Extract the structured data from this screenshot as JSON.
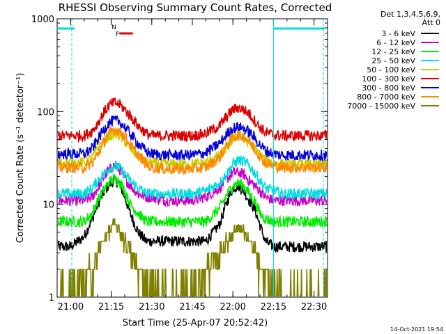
{
  "chart_data": {
    "type": "line",
    "title": "RHESSI Observing Summary Count Rates, Corrected",
    "xlabel": "Start Time (25-Apr-07 20:52:42)",
    "ylabel": "Corrected Count Rate (s⁻¹ detector⁻¹)",
    "yscale": "log",
    "ylim": [
      1,
      1000
    ],
    "xlim_minutes": [
      -5,
      95
    ],
    "x_ticks": [
      {
        "min": 0,
        "label": "21:00"
      },
      {
        "min": 15,
        "label": "21:15"
      },
      {
        "min": 30,
        "label": "21:30"
      },
      {
        "min": 45,
        "label": "21:45"
      },
      {
        "min": 60,
        "label": "22:00"
      },
      {
        "min": 75,
        "label": "22:15"
      },
      {
        "min": 90,
        "label": "22:30"
      }
    ],
    "y_ticks": [
      {
        "value": 1,
        "label": "1"
      },
      {
        "value": 10,
        "label": "10"
      },
      {
        "value": 100,
        "label": "100"
      },
      {
        "value": 1000,
        "label": "1000"
      }
    ],
    "x_minutes": [
      -5,
      0,
      5,
      8,
      10,
      12,
      14,
      16,
      18,
      20,
      22,
      25,
      28,
      30,
      35,
      40,
      45,
      50,
      55,
      58,
      60,
      62,
      64,
      66,
      68,
      70,
      72,
      75,
      78,
      80,
      85,
      90,
      95
    ],
    "series": [
      {
        "name": "3 - 6 keV",
        "color": "#000000",
        "values": [
          3.5,
          3.5,
          4.5,
          7,
          10,
          13,
          16,
          18,
          17,
          12,
          8,
          5,
          4,
          4,
          4,
          4,
          4,
          4,
          6,
          11,
          15,
          16,
          14,
          11,
          9,
          6,
          4,
          3.5,
          3.5,
          3.5,
          3.5,
          3.5,
          3.5
        ]
      },
      {
        "name": "6 - 12 keV",
        "color": "#cc00cc",
        "values": [
          11,
          11,
          11,
          12,
          15,
          19,
          23,
          26,
          24,
          19,
          16,
          13,
          12,
          12,
          11,
          11,
          11,
          12,
          15,
          19,
          22,
          22,
          21,
          18,
          16,
          14,
          12,
          11,
          11,
          11,
          11,
          11,
          11
        ]
      },
      {
        "name": "12 - 25 keV",
        "color": "#00ee00",
        "values": [
          6.5,
          6.5,
          6.5,
          8,
          11,
          14,
          17,
          19,
          18,
          14,
          10,
          8,
          6.5,
          6.5,
          6.5,
          6.5,
          6.5,
          6.5,
          9,
          13,
          16,
          17,
          16,
          13,
          11,
          8,
          7,
          6.5,
          6.5,
          6.5,
          6.5,
          6.5,
          6.5
        ]
      },
      {
        "name": "25 - 50 keV",
        "color": "#00dddd",
        "values": [
          13,
          13,
          13,
          15,
          18,
          21,
          24,
          26,
          25,
          21,
          18,
          15,
          13,
          13,
          13,
          13,
          13,
          14,
          17,
          22,
          27,
          30,
          29,
          26,
          22,
          18,
          15,
          14,
          13,
          13,
          13,
          13,
          13
        ]
      },
      {
        "name": "50 - 100 keV",
        "color": "#cccc00",
        "values": [
          28,
          28,
          28,
          32,
          40,
          48,
          54,
          58,
          55,
          48,
          40,
          33,
          28,
          28,
          27,
          27,
          27,
          28,
          33,
          42,
          50,
          55,
          52,
          46,
          40,
          34,
          30,
          28,
          27,
          27,
          27,
          27,
          27
        ]
      },
      {
        "name": "100 - 300 keV",
        "color": "#dd0000",
        "values": [
          55,
          55,
          55,
          62,
          75,
          95,
          115,
          125,
          120,
          105,
          90,
          70,
          58,
          55,
          55,
          55,
          55,
          58,
          70,
          90,
          105,
          110,
          105,
          95,
          80,
          68,
          60,
          56,
          55,
          55,
          55,
          55,
          55
        ]
      },
      {
        "name": "300 - 800 keV",
        "color": "#0000dd",
        "values": [
          35,
          35,
          35,
          40,
          50,
          62,
          75,
          80,
          78,
          68,
          58,
          45,
          37,
          35,
          34,
          34,
          34,
          36,
          45,
          58,
          66,
          68,
          66,
          60,
          52,
          44,
          38,
          35,
          34,
          34,
          34,
          34,
          34
        ]
      },
      {
        "name": "800 - 7000 keV",
        "color": "#ff8800",
        "values": [
          25,
          25,
          25,
          28,
          35,
          45,
          56,
          64,
          62,
          54,
          44,
          34,
          27,
          25,
          24,
          24,
          24,
          25,
          32,
          44,
          53,
          56,
          54,
          48,
          40,
          33,
          28,
          26,
          25,
          25,
          25,
          25,
          25
        ]
      },
      {
        "name": "7000 - 15000 keV",
        "color": "#808000",
        "values": [
          1,
          1,
          1.5,
          2,
          3,
          4,
          5,
          6,
          5,
          4,
          3,
          2,
          1.5,
          1,
          1,
          1,
          1.2,
          2,
          3,
          4,
          5,
          5.5,
          5,
          4,
          3,
          2,
          1.5,
          1,
          1,
          1,
          1,
          1,
          1
        ]
      }
    ],
    "legend": {
      "header_line1": "Det 1,3,4,5,6,9,",
      "header_line2": "Att 0",
      "placement": "top-right outside plot"
    },
    "annotations": {
      "night_label": "N",
      "flare_label": "F",
      "night_color": "#00dddd",
      "flare_color": "#dd0000",
      "night_start_min": 3,
      "night_end_min": 75,
      "flare_span_min": [
        18,
        23
      ]
    }
  },
  "footer": {
    "timestamp": "14-Oct-2021 19:54"
  }
}
